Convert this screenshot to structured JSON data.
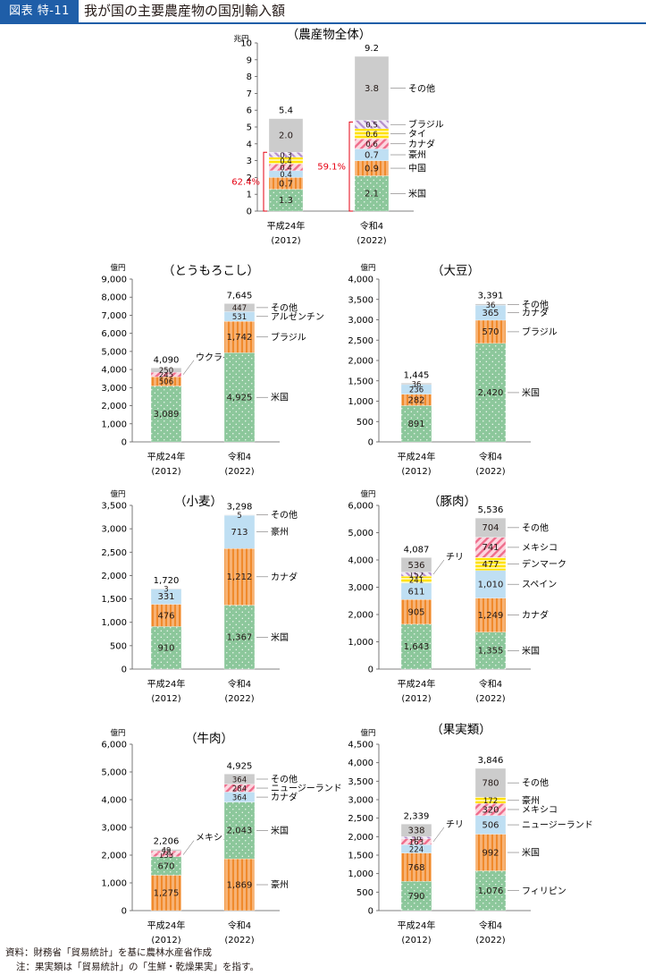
{
  "header": {
    "badge": "図表 特-11",
    "title": "我が国の主要農産物の国別輸入額"
  },
  "footer": {
    "source": "資料：財務省「貿易統計」を基に農林水産省作成",
    "note": "注：果実類は「貿易統計」の「生鮮・乾燥果実」を指す。"
  },
  "colors": {
    "green": "#8cc79b",
    "orange": "#f6a85a",
    "blue": "#bfdff3",
    "yellow": "#ffe600",
    "pink": "#f6a3b5",
    "lavender": "#d9c6e4",
    "gray": "#cccccc",
    "accent": "#1f5ea8",
    "bracket": "#e60012"
  },
  "chart_data": [
    {
      "type": "bar",
      "title": "（農産物全体）",
      "unit": "兆円",
      "ylim": [
        0,
        10
      ],
      "yticks": [
        "0",
        "1",
        "2",
        "3",
        "4",
        "5",
        "6",
        "7",
        "8",
        "9",
        "10"
      ],
      "categories": [
        {
          "line1": "平成24年",
          "line2": "(2012)"
        },
        {
          "line1": "令和4",
          "line2": "(2022)"
        }
      ],
      "totals": [
        "5.4",
        "9.2"
      ],
      "series": [
        {
          "name": "米国",
          "color": "green",
          "values": [
            1.3,
            2.1
          ],
          "labels": [
            "1.3",
            "2.1"
          ]
        },
        {
          "name": "中国",
          "color": "orange",
          "values": [
            0.7,
            0.9
          ],
          "labels": [
            "0.7",
            "0.9"
          ]
        },
        {
          "name": "豪州",
          "color": "blue",
          "values": [
            0.4,
            0.7
          ],
          "labels": [
            "0.4",
            "0.7"
          ]
        },
        {
          "name": "カナダ",
          "color": "pink",
          "values": [
            0.4,
            0.6
          ],
          "labels": [
            "0.4",
            "0.6"
          ]
        },
        {
          "name": "タイ",
          "color": "yellow",
          "values": [
            0.4,
            0.6
          ],
          "labels": [
            "0.4",
            "0.6"
          ]
        },
        {
          "name": "ブラジル",
          "color": "lavender",
          "values": [
            0.3,
            0.5
          ],
          "labels": [
            "0.3",
            "0.5"
          ]
        },
        {
          "name": "その他",
          "color": "gray",
          "values": [
            2.0,
            3.8
          ],
          "labels": [
            "2.0",
            "3.8"
          ]
        }
      ],
      "brackets": [
        {
          "text": "62.4%",
          "bar": 0,
          "from": 0,
          "to": 3.5
        },
        {
          "text": "59.1%",
          "bar": 1,
          "from": 0,
          "to": 5.3
        }
      ]
    },
    {
      "type": "bar",
      "title": "（とうもろこし）",
      "unit": "億円",
      "ylim": [
        0,
        9000
      ],
      "yticks": [
        "0",
        "1,000",
        "2,000",
        "3,000",
        "4,000",
        "5,000",
        "6,000",
        "7,000",
        "8,000",
        "9,000"
      ],
      "categories": [
        {
          "line1": "平成24年",
          "line2": "(2012)"
        },
        {
          "line1": "令和4",
          "line2": "(2022)"
        }
      ],
      "totals": [
        "4,090",
        "7,645"
      ],
      "series": [
        {
          "name": "米国",
          "color": "green",
          "values": [
            3089,
            4925
          ],
          "labels": [
            "3,089",
            "4,925"
          ]
        },
        {
          "name": "ブラジル",
          "color": "orange",
          "values": [
            506,
            1742
          ],
          "labels": [
            "506",
            "1,742"
          ]
        },
        {
          "name": "ウクライナ",
          "color": "pink",
          "values": [
            245,
            0
          ],
          "labels": [
            "245",
            ""
          ]
        },
        {
          "name": "アルゼンチン",
          "color": "blue",
          "values": [
            0,
            531
          ],
          "labels": [
            "",
            "531"
          ]
        },
        {
          "name": "その他",
          "color": "gray",
          "values": [
            250,
            447
          ],
          "labels": [
            "250",
            "447"
          ]
        }
      ]
    },
    {
      "type": "bar",
      "title": "（大豆）",
      "unit": "億円",
      "ylim": [
        0,
        4000
      ],
      "yticks": [
        "0",
        "500",
        "1,000",
        "1,500",
        "2,000",
        "2,500",
        "3,000",
        "3,500",
        "4,000"
      ],
      "categories": [
        {
          "line1": "平成24年",
          "line2": "(2012)"
        },
        {
          "line1": "令和4",
          "line2": "(2022)"
        }
      ],
      "totals": [
        "1,445",
        "3,391"
      ],
      "series": [
        {
          "name": "米国",
          "color": "green",
          "values": [
            891,
            2420
          ],
          "labels": [
            "891",
            "2,420"
          ]
        },
        {
          "name": "ブラジル",
          "color": "orange",
          "values": [
            282,
            570
          ],
          "labels": [
            "282",
            "570"
          ]
        },
        {
          "name": "カナダ",
          "color": "blue",
          "values": [
            236,
            365
          ],
          "labels": [
            "236",
            "365"
          ]
        },
        {
          "name": "その他",
          "color": "gray",
          "values": [
            36,
            36
          ],
          "labels": [
            "36",
            "36"
          ]
        }
      ]
    },
    {
      "type": "bar",
      "title": "（小麦）",
      "unit": "億円",
      "ylim": [
        0,
        3500
      ],
      "yticks": [
        "0",
        "500",
        "1,000",
        "1,500",
        "2,000",
        "2,500",
        "3,000",
        "3,500"
      ],
      "categories": [
        {
          "line1": "平成24年",
          "line2": "(2012)"
        },
        {
          "line1": "令和4",
          "line2": "(2022)"
        }
      ],
      "totals": [
        "1,720",
        "3,298"
      ],
      "series": [
        {
          "name": "米国",
          "color": "green",
          "values": [
            910,
            1367
          ],
          "labels": [
            "910",
            "1,367"
          ]
        },
        {
          "name": "カナダ",
          "color": "orange",
          "values": [
            476,
            1212
          ],
          "labels": [
            "476",
            "1,212"
          ]
        },
        {
          "name": "豪州",
          "color": "blue",
          "values": [
            331,
            713
          ],
          "labels": [
            "331",
            "713"
          ]
        },
        {
          "name": "その他",
          "color": "gray",
          "values": [
            3,
            5
          ],
          "labels": [
            "3",
            "5"
          ]
        }
      ]
    },
    {
      "type": "bar",
      "title": "（豚肉）",
      "unit": "億円",
      "ylim": [
        0,
        6000
      ],
      "yticks": [
        "0",
        "1,000",
        "2,000",
        "3,000",
        "4,000",
        "5,000",
        "6,000"
      ],
      "categories": [
        {
          "line1": "平成24年",
          "line2": "(2012)"
        },
        {
          "line1": "令和4",
          "line2": "(2022)"
        }
      ],
      "totals": [
        "4,087",
        "5,536"
      ],
      "series": [
        {
          "name": "米国",
          "color": "green",
          "values": [
            1643,
            1355
          ],
          "labels": [
            "1,643",
            "1,355"
          ]
        },
        {
          "name": "カナダ",
          "color": "orange",
          "values": [
            905,
            1249
          ],
          "labels": [
            "905",
            "1,249"
          ]
        },
        {
          "name": "スペイン",
          "color": "blue",
          "values": [
            611,
            1010
          ],
          "labels": [
            "611",
            "1,010"
          ]
        },
        {
          "name": "デンマーク",
          "color": "yellow",
          "values": [
            241,
            477
          ],
          "labels": [
            "241",
            "477"
          ]
        },
        {
          "name": "メキシコ",
          "color": "pink",
          "values": [
            0,
            741
          ],
          "labels": [
            "",
            "741"
          ]
        },
        {
          "name": "チリ",
          "color": "lavender",
          "values": [
            152,
            0
          ],
          "labels": [
            "152",
            ""
          ]
        },
        {
          "name": "その他",
          "color": "gray",
          "values": [
            536,
            704
          ],
          "labels": [
            "536",
            "704"
          ]
        }
      ]
    },
    {
      "type": "bar",
      "title": "（牛肉）",
      "unit": "億円",
      "ylim": [
        0,
        6000
      ],
      "yticks": [
        "0",
        "1,000",
        "2,000",
        "3,000",
        "4,000",
        "5,000",
        "6,000"
      ],
      "categories": [
        {
          "line1": "平成24年",
          "line2": "(2012)"
        },
        {
          "line1": "令和4",
          "line2": "(2022)"
        }
      ],
      "totals": [
        "2,206",
        "4,925"
      ],
      "series": [
        {
          "name": "豪州",
          "color": "orange",
          "values": [
            1275,
            1869
          ],
          "labels": [
            "1,275",
            "1,869"
          ]
        },
        {
          "name": "米国",
          "color": "green",
          "values": [
            670,
            2043
          ],
          "labels": [
            "670",
            "2,043"
          ]
        },
        {
          "name": "カナダ",
          "color": "blue",
          "values": [
            0,
            364
          ],
          "labels": [
            "",
            "364"
          ]
        },
        {
          "name": "メキシコ",
          "color": "pink",
          "values": [
            133,
            0
          ],
          "labels": [
            "133",
            ""
          ]
        },
        {
          "name": "ニュージーランド",
          "color": "pink",
          "values": [
            78,
            284
          ],
          "labels": [
            "78",
            "284"
          ]
        },
        {
          "name": "その他",
          "color": "gray",
          "values": [
            49,
            364
          ],
          "labels": [
            "49",
            "364"
          ]
        }
      ]
    },
    {
      "type": "bar",
      "title": "（果実類）",
      "unit": "億円",
      "ylim": [
        0,
        4500
      ],
      "yticks": [
        "0",
        "500",
        "1,000",
        "1,500",
        "2,000",
        "2,500",
        "3,000",
        "3,500",
        "4,000",
        "4,500"
      ],
      "categories": [
        {
          "line1": "平成24年",
          "line2": "(2012)"
        },
        {
          "line1": "令和4",
          "line2": "(2022)"
        }
      ],
      "totals": [
        "2,339",
        "3,846"
      ],
      "series": [
        {
          "name": "フィリピン",
          "color": "green",
          "values": [
            790,
            1076
          ],
          "labels": [
            "790",
            "1,076"
          ]
        },
        {
          "name": "米国",
          "color": "orange",
          "values": [
            768,
            992
          ],
          "labels": [
            "768",
            "992"
          ]
        },
        {
          "name": "ニュージーランド",
          "color": "blue",
          "values": [
            224,
            506
          ],
          "labels": [
            "224",
            "506"
          ]
        },
        {
          "name": "チリ",
          "color": "pink",
          "values": [
            163,
            0
          ],
          "labels": [
            "163",
            ""
          ]
        },
        {
          "name": "メキシコ",
          "color": "pink",
          "values": [
            0,
            320
          ],
          "labels": [
            "",
            "320"
          ]
        },
        {
          "name": "",
          "color": "lavender",
          "values": [
            56,
            0
          ],
          "labels": [
            "56",
            ""
          ]
        },
        {
          "name": "豪州",
          "color": "yellow",
          "values": [
            0,
            172
          ],
          "labels": [
            "",
            "172"
          ]
        },
        {
          "name": "その他",
          "color": "gray",
          "values": [
            338,
            780
          ],
          "labels": [
            "338",
            "780"
          ]
        }
      ]
    }
  ]
}
